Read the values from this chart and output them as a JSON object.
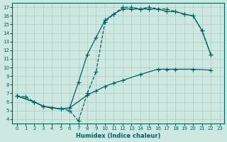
{
  "xlabel": "Humidex (Indice chaleur)",
  "bg_color": "#cce8e0",
  "line_color": "#006060",
  "grid_color": "#aaccc4",
  "xlim": [
    -0.5,
    23.5
  ],
  "ylim": [
    3.5,
    17.5
  ],
  "xticks": [
    0,
    1,
    2,
    3,
    4,
    5,
    6,
    7,
    8,
    9,
    10,
    11,
    12,
    13,
    14,
    15,
    16,
    17,
    18,
    19,
    20,
    21,
    22,
    23
  ],
  "yticks": [
    4,
    5,
    6,
    7,
    8,
    9,
    10,
    11,
    12,
    13,
    14,
    15,
    16,
    17
  ],
  "line1_x": [
    0,
    1,
    2,
    3,
    4,
    5,
    6,
    7,
    8,
    9,
    10,
    11,
    12,
    13,
    14,
    15,
    16,
    17,
    18,
    19,
    20,
    21,
    22
  ],
  "line1_y": [
    6.7,
    6.6,
    6.0,
    5.5,
    5.3,
    5.2,
    5.0,
    3.8,
    7.0,
    9.5,
    15.3,
    16.2,
    17.0,
    17.0,
    16.8,
    17.0,
    16.8,
    16.8,
    16.5,
    16.2,
    16.0,
    14.3,
    11.5
  ],
  "line1_style": "--",
  "line2_x": [
    0,
    2,
    3,
    4,
    5,
    6,
    7,
    8,
    9,
    10,
    11,
    12,
    13,
    14,
    15,
    16,
    17,
    18,
    19,
    20,
    21,
    22
  ],
  "line2_y": [
    6.7,
    6.0,
    5.5,
    5.3,
    5.2,
    5.3,
    8.3,
    11.5,
    13.5,
    15.5,
    16.2,
    16.8,
    16.8,
    16.8,
    16.8,
    16.8,
    16.5,
    16.5,
    16.2,
    16.0,
    14.3,
    11.5
  ],
  "line2_style": "-",
  "line3_x": [
    0,
    2,
    3,
    5,
    6,
    8,
    9,
    10,
    11,
    12,
    14,
    16,
    17,
    18,
    20,
    22
  ],
  "line3_y": [
    6.7,
    6.0,
    5.5,
    5.2,
    5.3,
    6.8,
    7.3,
    7.8,
    8.2,
    8.5,
    9.2,
    9.8,
    9.8,
    9.8,
    9.8,
    9.7
  ],
  "line3_style": "-",
  "marker": "+",
  "markersize": 4,
  "linewidth": 0.9
}
